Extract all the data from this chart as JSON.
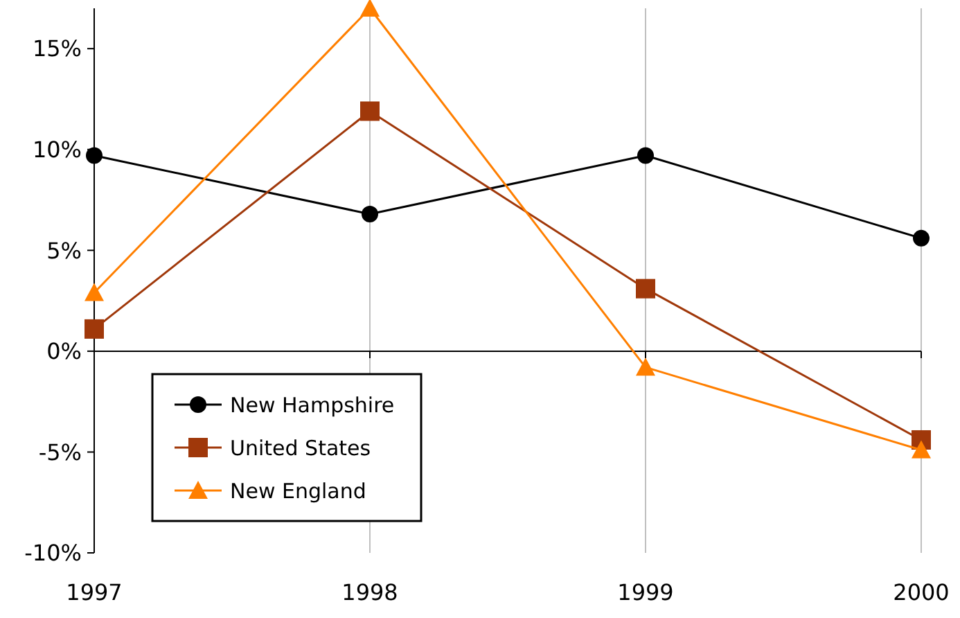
{
  "chart_data": {
    "type": "line",
    "x": [
      1997,
      1998,
      1999,
      2000
    ],
    "xlim": [
      1997,
      2000
    ],
    "xticks": [
      1997,
      1998,
      1999,
      2000
    ],
    "ylim": [
      -10,
      17
    ],
    "yticks": [
      {
        "value": -10,
        "label": "-10%"
      },
      {
        "value": -5,
        "label": "-5%"
      },
      {
        "value": 0,
        "label": "0%"
      },
      {
        "value": 5,
        "label": "5%"
      },
      {
        "value": 10,
        "label": "10%"
      },
      {
        "value": 15,
        "label": "15%"
      }
    ],
    "grid": "x",
    "legend": "bottom left",
    "series": [
      {
        "name": "New Hampshire",
        "color": "#000000",
        "marker": "circle",
        "values": [
          9.7,
          6.8,
          9.7,
          5.6
        ]
      },
      {
        "name": "United States",
        "color": "#a0380a",
        "marker": "square",
        "values": [
          1.1,
          11.9,
          3.1,
          -4.4
        ]
      },
      {
        "name": "New England",
        "color": "#ff7f00",
        "marker": "triangle",
        "values": [
          2.9,
          17,
          -0.8,
          -4.9
        ]
      }
    ]
  }
}
